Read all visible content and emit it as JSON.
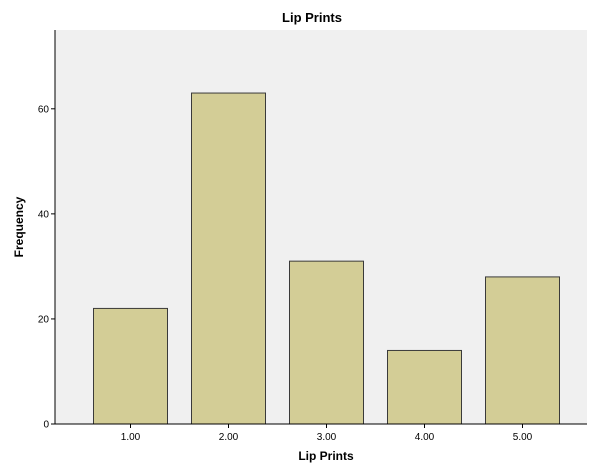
{
  "chart_data": {
    "type": "bar",
    "title": "Lip Prints",
    "xlabel": "Lip Prints",
    "ylabel": "Frequency",
    "categories": [
      "1.00",
      "2.00",
      "3.00",
      "4.00",
      "5.00"
    ],
    "values": [
      22,
      63,
      31,
      14,
      28
    ],
    "ylim": [
      0,
      75
    ],
    "yticks": [
      0,
      20,
      40,
      60
    ],
    "grid": false,
    "legend": "none",
    "colors": {
      "bar_fill": "#d3cd96",
      "bar_stroke": "#3a3a3a",
      "plot_background": "#f0f0f0",
      "axis": "#000000"
    }
  }
}
